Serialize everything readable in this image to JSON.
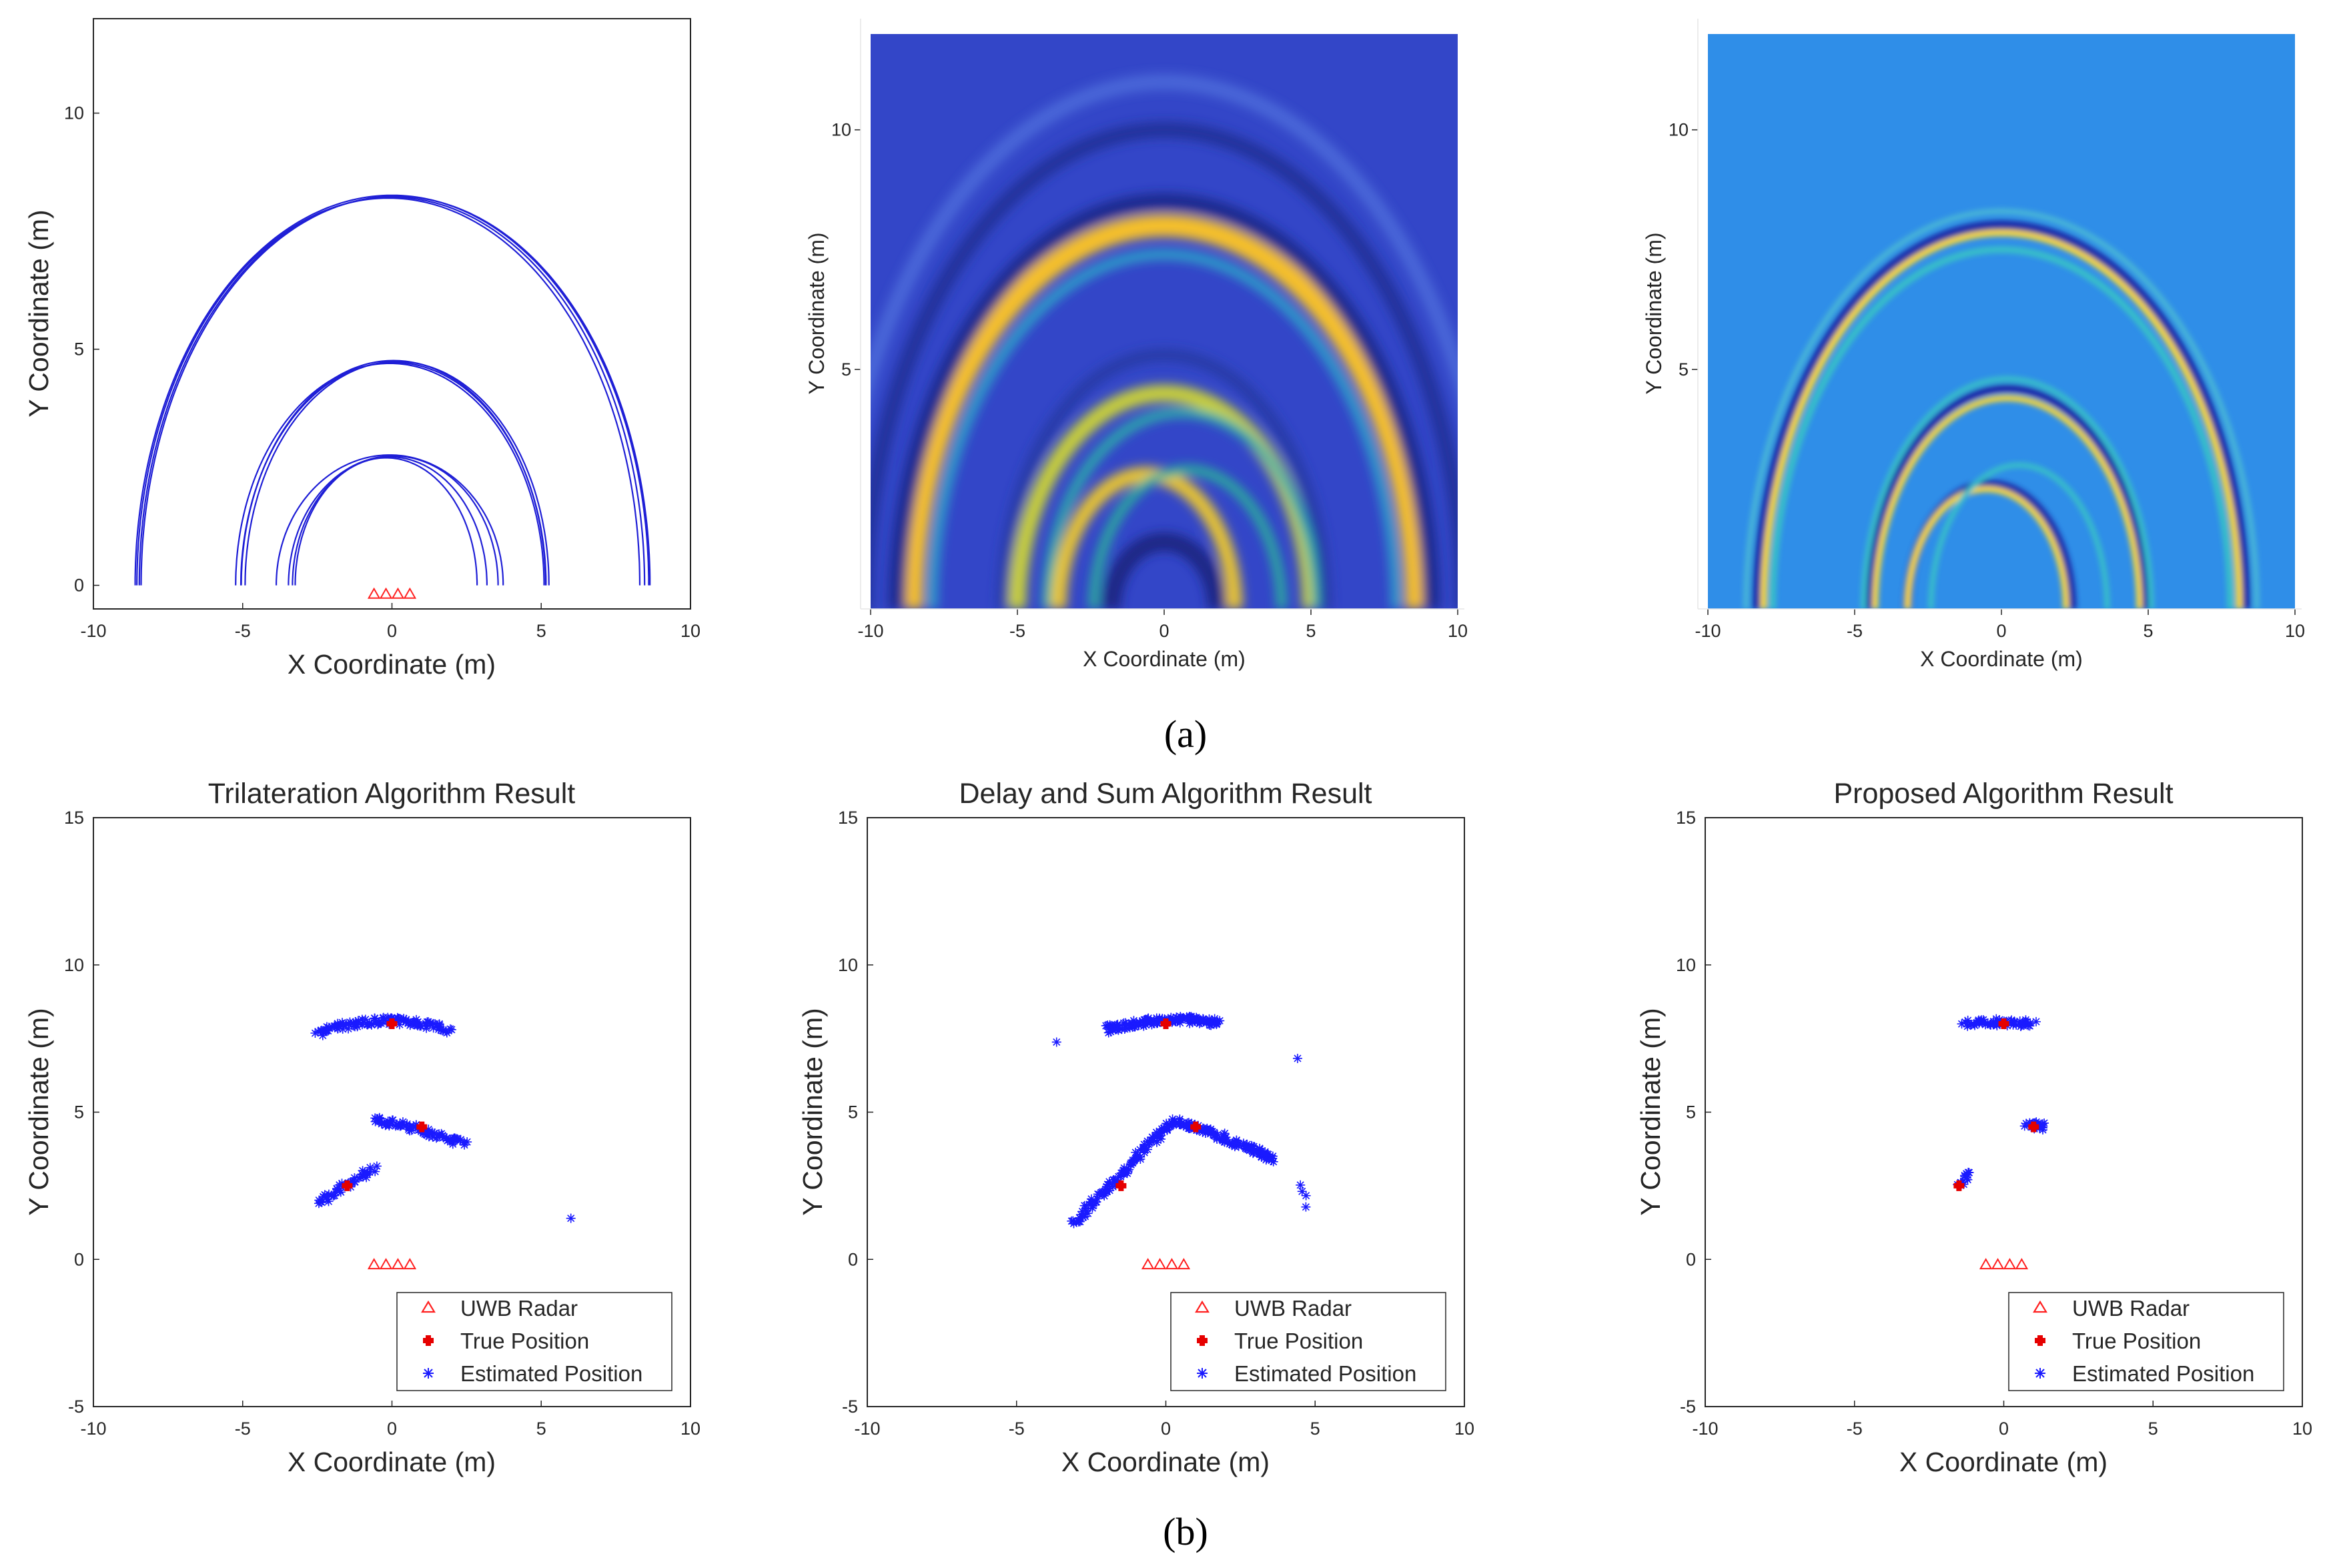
{
  "figure": {
    "panel_a_label": "(a)",
    "panel_b_label": "(b)",
    "x_label": "X Coordinate (m)",
    "y_label": "Y Coordinate (m)",
    "legend": {
      "radar": "UWB Radar",
      "true": "True Position",
      "estimated": "Estimated Position"
    },
    "colors": {
      "arc": "#1f1fd6",
      "radar": "#ff2020",
      "true": "#e60000",
      "estimated": "#1a1aff",
      "ds_background": "#3346c8",
      "proposed_background": "#2f8ee8"
    }
  },
  "chart_data": [
    {
      "id": "a1",
      "type": "line",
      "title": "",
      "xlabel": "X Coordinate (m)",
      "ylabel": "Y Coordinate (m)",
      "xlim": [
        -10,
        10
      ],
      "ylim": [
        -0.5,
        12
      ],
      "xticks": [
        "-10",
        "-5",
        "0",
        "5",
        "10"
      ],
      "yticks": [
        "0",
        "5",
        "10"
      ],
      "radars_x": [
        -0.6,
        -0.2,
        0.2,
        0.6
      ],
      "radar_y": -0.2,
      "targets": [
        {
          "x": 0,
          "y": 8
        },
        {
          "x": 1,
          "y": 4.5
        },
        {
          "x": -1.5,
          "y": 2.5
        }
      ],
      "series_description": "range ellipses from each UWB radar to each target"
    },
    {
      "id": "a2",
      "type": "heatmap",
      "title": "",
      "xlabel": "X Coordinate (m)",
      "ylabel": "Y Coordinate (m)",
      "xlim": [
        -10,
        10
      ],
      "ylim": [
        0,
        12
      ],
      "xticks": [
        "-10",
        "-5",
        "0",
        "5",
        "10"
      ],
      "yticks": [
        "5",
        "10"
      ],
      "method": "Delay and Sum image"
    },
    {
      "id": "a3",
      "type": "heatmap",
      "title": "",
      "xlabel": "X Coordinate (m)",
      "ylabel": "Y Coordinate (m)",
      "xlim": [
        -10,
        10
      ],
      "ylim": [
        0,
        12
      ],
      "xticks": [
        "-10",
        "-5",
        "0",
        "5",
        "10"
      ],
      "yticks": [
        "5",
        "10"
      ],
      "method": "Proposed image"
    },
    {
      "id": "b1",
      "type": "scatter",
      "title": "Trilateration Algorithm Result",
      "xlabel": "X Coordinate (m)",
      "ylabel": "Y Coordinate (m)",
      "xlim": [
        -10,
        10
      ],
      "ylim": [
        -5,
        15
      ],
      "xticks": [
        "-10",
        "-5",
        "0",
        "5",
        "10"
      ],
      "yticks": [
        "-5",
        "0",
        "5",
        "10",
        "15"
      ],
      "true_positions": [
        [
          0,
          8
        ],
        [
          1,
          4.5
        ],
        [
          -1.5,
          2.5
        ]
      ],
      "estimated_clusters": [
        {
          "x_from": -2.5,
          "x_to": 1.9,
          "y_from": 7.7,
          "y_to": 7.8,
          "y_bulge": 0.35,
          "count": 110
        },
        {
          "x_from": -0.6,
          "x_to": 2.4,
          "y_from": 4.75,
          "y_to": 3.9,
          "y_bulge": 0.1,
          "count": 80
        },
        {
          "x_from": -2.5,
          "x_to": -0.6,
          "y_from": 1.9,
          "y_to": 3.1,
          "y_bulge": 0.0,
          "count": 45
        },
        {
          "x_from": 5.9,
          "x_to": 5.9,
          "y_from": 1.4,
          "y_to": 1.4,
          "y_bulge": 0.0,
          "count": 1
        }
      ]
    },
    {
      "id": "b2",
      "type": "scatter",
      "title": "Delay and Sum Algorithm Result",
      "xlabel": "X Coordinate (m)",
      "ylabel": "Y Coordinate (m)",
      "xlim": [
        -10,
        10
      ],
      "ylim": [
        -5,
        15
      ],
      "xticks": [
        "-10",
        "-5",
        "0",
        "5",
        "10"
      ],
      "yticks": [
        "-5",
        "0",
        "5",
        "10",
        "15"
      ],
      "true_positions": [
        [
          0,
          8
        ],
        [
          1,
          4.5
        ],
        [
          -1.5,
          2.5
        ]
      ],
      "estimated_clusters": [
        {
          "x_from": -2.0,
          "x_to": 1.8,
          "y_from": 7.8,
          "y_to": 8.05,
          "y_bulge": 0.2,
          "count": 130
        },
        {
          "x_from": 0.2,
          "x_to": 3.6,
          "y_from": 4.7,
          "y_to": 3.4,
          "y_bulge": 0.1,
          "count": 120
        },
        {
          "x_from": -3.1,
          "x_to": 0.2,
          "y_from": 1.2,
          "y_to": 4.7,
          "y_bulge": 0.0,
          "count": 110
        },
        {
          "x_from": -3.6,
          "x_to": -3.6,
          "y_from": 7.3,
          "y_to": 7.3,
          "y_bulge": 0.0,
          "count": 1
        },
        {
          "x_from": 4.4,
          "x_to": 4.4,
          "y_from": 6.8,
          "y_to": 6.8,
          "y_bulge": 0.0,
          "count": 1
        },
        {
          "x_from": 4.4,
          "x_to": 4.8,
          "y_from": 2.5,
          "y_to": 1.9,
          "y_bulge": 0.0,
          "count": 4
        }
      ]
    },
    {
      "id": "b3",
      "type": "scatter",
      "title": "Proposed Algorithm Result",
      "xlabel": "X Coordinate (m)",
      "ylabel": "Y Coordinate (m)",
      "xlim": [
        -10,
        10
      ],
      "ylim": [
        -5,
        15
      ],
      "xticks": [
        "-10",
        "-5",
        "0",
        "5",
        "10"
      ],
      "yticks": [
        "-5",
        "0",
        "5",
        "10",
        "15"
      ],
      "true_positions": [
        [
          0,
          8
        ],
        [
          1,
          4.5
        ],
        [
          -1.5,
          2.5
        ]
      ],
      "estimated_clusters": [
        {
          "x_from": -1.3,
          "x_to": 1.0,
          "y_from": 8.0,
          "y_to": 8.0,
          "y_bulge": 0.05,
          "count": 60
        },
        {
          "x_from": 0.8,
          "x_to": 1.4,
          "y_from": 4.6,
          "y_to": 4.5,
          "y_bulge": 0.0,
          "count": 25
        },
        {
          "x_from": -1.5,
          "x_to": -1.1,
          "y_from": 2.6,
          "y_to": 2.95,
          "y_bulge": 0.0,
          "count": 12
        }
      ]
    }
  ]
}
